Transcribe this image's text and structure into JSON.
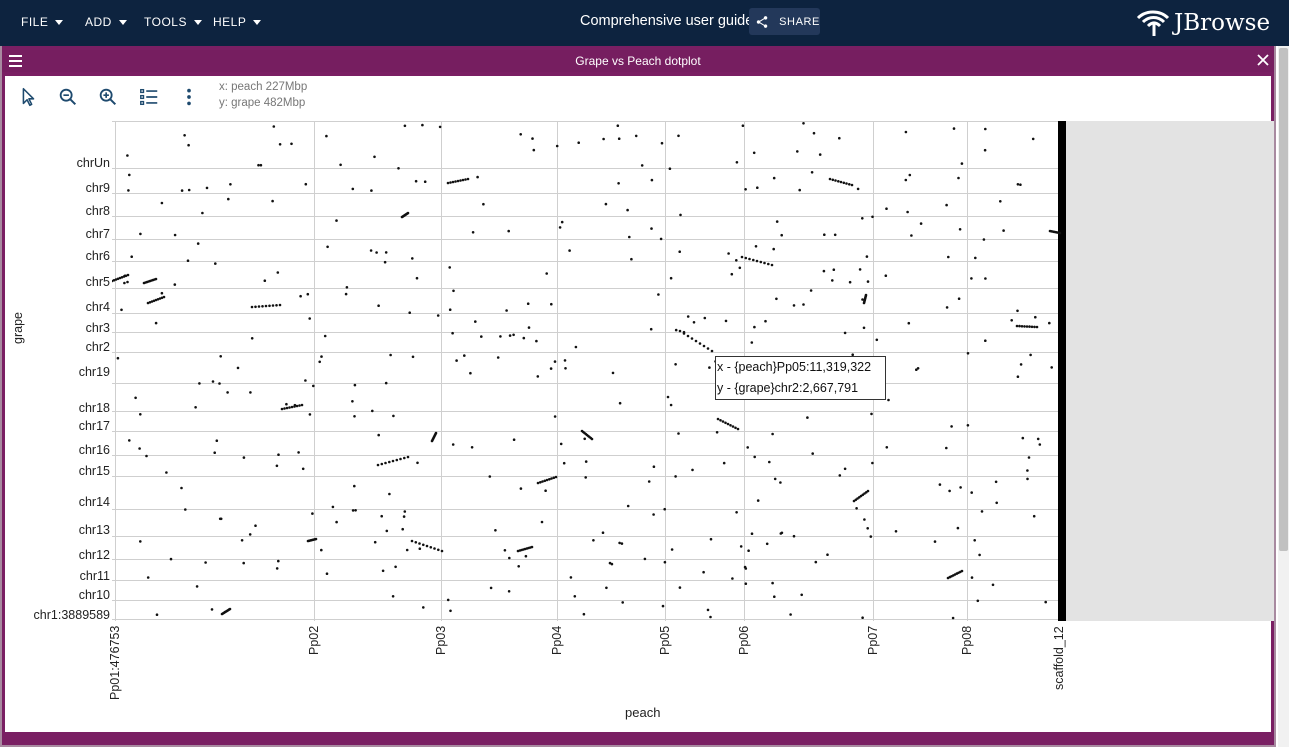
{
  "menu": {
    "items": [
      {
        "label": "FILE"
      },
      {
        "label": "ADD"
      },
      {
        "label": "TOOLS"
      },
      {
        "label": "HELP"
      }
    ]
  },
  "header": {
    "session_title": "Comprehensive user guide",
    "share_label": "SHARE",
    "logo_text": "JBrowse",
    "bar_color": "#0d233f"
  },
  "view": {
    "title": "Grape vs Peach dotplot",
    "frame_color": "#761e60",
    "x_info": "x: peach 227Mbp",
    "y_info": "y: grape 482Mbp",
    "toolbar_icons": [
      "cursor-icon",
      "zoom-out-icon",
      "zoom-in-icon",
      "list-icon",
      "more-vert-icon"
    ]
  },
  "plot": {
    "x_axis_title": "peach",
    "y_axis_title": "grape",
    "x_labels": [
      "Pp01:476753",
      "Pp02",
      "Pp03",
      "Pp04",
      "Pp05",
      "Pp06",
      "Pp07",
      "Pp08",
      "scaffold_12"
    ],
    "y_labels": [
      "chrUn",
      "chr9",
      "chr8",
      "chr7",
      "chr6",
      "chr5",
      "chr4",
      "chr3",
      "chr2",
      "chr19",
      "chr18",
      "chr17",
      "chr16",
      "chr15",
      "chr14",
      "chr13",
      "chr12",
      "chr11",
      "chr10",
      "chr1:3889589"
    ]
  },
  "tooltip": {
    "x_line": "x - {peach}Pp05:11,319,322",
    "y_line": "y - {grape}chr2:2,667,791"
  }
}
